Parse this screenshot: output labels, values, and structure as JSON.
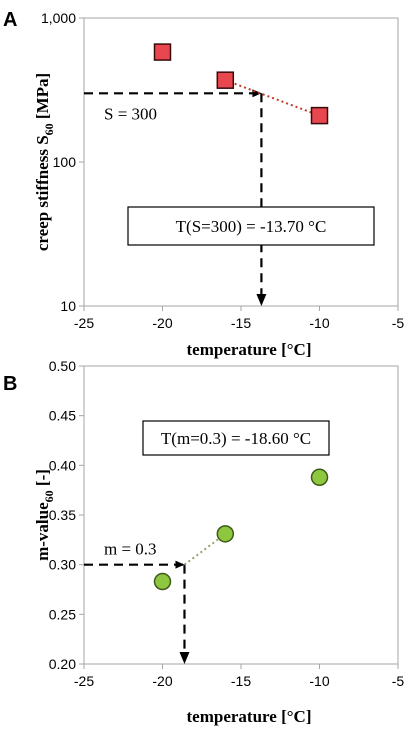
{
  "chart_data": [
    {
      "panel": "A",
      "type": "scatter",
      "xlabel": "temperature [°C]",
      "ylabel_main": "creep stiffness S",
      "ylabel_sub": "60",
      "ylabel_unit": " [MPa]",
      "xlim": [
        -25,
        -5
      ],
      "ylim": [
        10,
        1000
      ],
      "yscale": "log",
      "xticks": [
        "-25",
        "-20",
        "-15",
        "-10",
        "-5"
      ],
      "yticks": [
        "10",
        "100",
        "1,000"
      ],
      "ytick_values": [
        10,
        100,
        1000
      ],
      "points": [
        {
          "x": -20,
          "y": 580
        },
        {
          "x": -16,
          "y": 370
        },
        {
          "x": -10,
          "y": 210
        }
      ],
      "marker_color": "#e8474f",
      "interp_line": {
        "from": {
          "x": -16,
          "y": 370
        },
        "to": {
          "x": -10,
          "y": 210
        },
        "color": "#c0392b"
      },
      "threshold_label": "S = 300",
      "threshold_value": 300,
      "result_x": -13.7,
      "result_label": "T(S=300) = -13.70 °C"
    },
    {
      "panel": "B",
      "type": "scatter",
      "xlabel": "temperature [°C]",
      "ylabel_main": "m-value",
      "ylabel_sub": "60",
      "ylabel_unit": " [-]",
      "xlim": [
        -25,
        -5
      ],
      "ylim": [
        0.2,
        0.5
      ],
      "xticks": [
        "-25",
        "-20",
        "-15",
        "-10",
        "-5"
      ],
      "yticks": [
        "0.20",
        "0.25",
        "0.30",
        "0.35",
        "0.40",
        "0.45",
        "0.50"
      ],
      "ytick_values": [
        0.2,
        0.25,
        0.3,
        0.35,
        0.4,
        0.45,
        0.5
      ],
      "points": [
        {
          "x": -20,
          "y": 0.283
        },
        {
          "x": -16,
          "y": 0.331
        },
        {
          "x": -10,
          "y": 0.388
        }
      ],
      "marker_color": "#8dc63f",
      "interp_line": {
        "from": {
          "x": -18.6,
          "y": 0.3
        },
        "to": {
          "x": -16,
          "y": 0.331
        },
        "color": "#8fa36a"
      },
      "threshold_label": "m = 0.3",
      "threshold_value": 0.3,
      "result_x": -18.6,
      "result_label": "T(m=0.3) = -18.60 °C"
    }
  ]
}
